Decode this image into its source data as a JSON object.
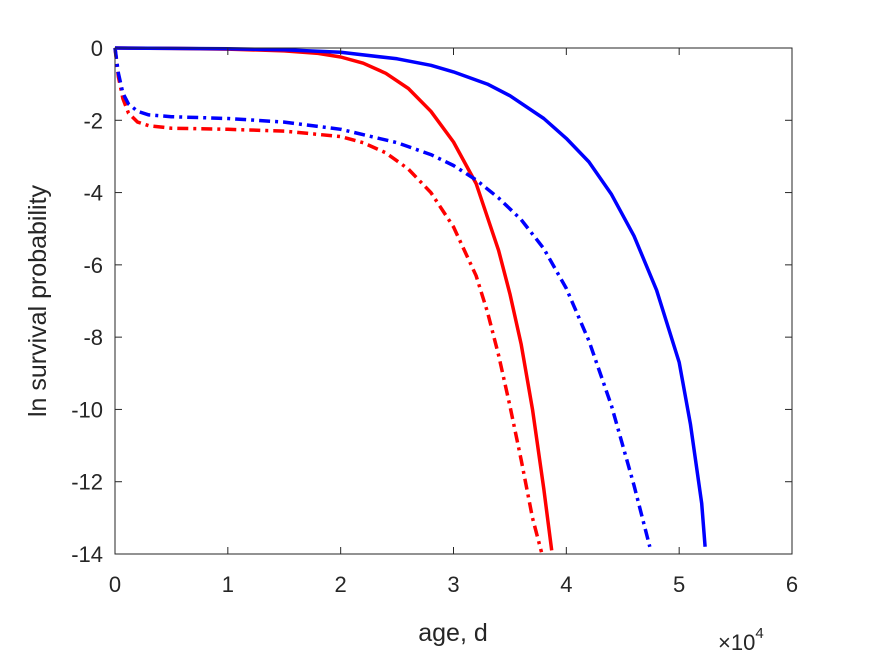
{
  "chart_data": {
    "type": "line",
    "title": "",
    "xlabel": "age, d",
    "ylabel": "ln survival probability",
    "x_exponent_label": "×10",
    "x_exponent_power": "4",
    "xlim": [
      0,
      60000
    ],
    "ylim": [
      -14,
      0
    ],
    "xticks": [
      0,
      10000,
      20000,
      30000,
      40000,
      50000,
      60000
    ],
    "xtick_labels": [
      "0",
      "1",
      "2",
      "3",
      "4",
      "5",
      "6"
    ],
    "yticks": [
      0,
      -2,
      -4,
      -6,
      -8,
      -10,
      -12,
      -14
    ],
    "ytick_labels": [
      "0",
      "-2",
      "-4",
      "-6",
      "-8",
      "-10",
      "-12",
      "-14"
    ],
    "grid": false,
    "series": [
      {
        "color": "#ff0000",
        "style": "solid",
        "x": [
          0,
          5000,
          10000,
          15000,
          18000,
          20000,
          22000,
          24000,
          26000,
          28000,
          30000,
          32000,
          34000,
          35000,
          36000,
          37000,
          38000,
          38700
        ],
        "y": [
          0,
          -0.01,
          -0.03,
          -0.08,
          -0.15,
          -0.25,
          -0.42,
          -0.7,
          -1.12,
          -1.75,
          -2.6,
          -3.75,
          -5.6,
          -6.8,
          -8.2,
          -10.0,
          -12.2,
          -13.9
        ]
      },
      {
        "color": "#0000ff",
        "style": "solid",
        "x": [
          0,
          10000,
          15000,
          20000,
          25000,
          28000,
          30000,
          33000,
          35000,
          38000,
          40000,
          42000,
          44000,
          46000,
          48000,
          50000,
          51000,
          52000,
          52300
        ],
        "y": [
          0,
          -0.02,
          -0.05,
          -0.12,
          -0.3,
          -0.48,
          -0.66,
          -1.0,
          -1.32,
          -1.95,
          -2.5,
          -3.15,
          -4.05,
          -5.2,
          -6.7,
          -8.7,
          -10.4,
          -12.6,
          -13.8
        ]
      },
      {
        "color": "#ff0000",
        "style": "dashdot",
        "x": [
          0,
          300,
          700,
          1200,
          2000,
          3000,
          5000,
          10000,
          15000,
          20000,
          22000,
          24000,
          26000,
          28000,
          30000,
          32000,
          33000,
          34000,
          35000,
          36000,
          37000,
          37800
        ],
        "y": [
          0,
          -0.8,
          -1.4,
          -1.8,
          -2.05,
          -2.15,
          -2.22,
          -2.25,
          -2.3,
          -2.45,
          -2.62,
          -2.9,
          -3.35,
          -4.0,
          -4.95,
          -6.3,
          -7.3,
          -8.5,
          -9.9,
          -11.4,
          -13.0,
          -13.95
        ]
      },
      {
        "color": "#0000ff",
        "style": "dashdot",
        "x": [
          0,
          300,
          700,
          1200,
          2000,
          3000,
          5000,
          10000,
          15000,
          20000,
          25000,
          28000,
          30000,
          32000,
          34000,
          36000,
          38000,
          40000,
          42000,
          44000,
          46000,
          47400
        ],
        "y": [
          0,
          -0.7,
          -1.25,
          -1.55,
          -1.75,
          -1.85,
          -1.9,
          -1.95,
          -2.05,
          -2.25,
          -2.62,
          -2.95,
          -3.25,
          -3.65,
          -4.15,
          -4.75,
          -5.55,
          -6.65,
          -8.1,
          -9.9,
          -12.1,
          -13.8
        ]
      }
    ]
  }
}
